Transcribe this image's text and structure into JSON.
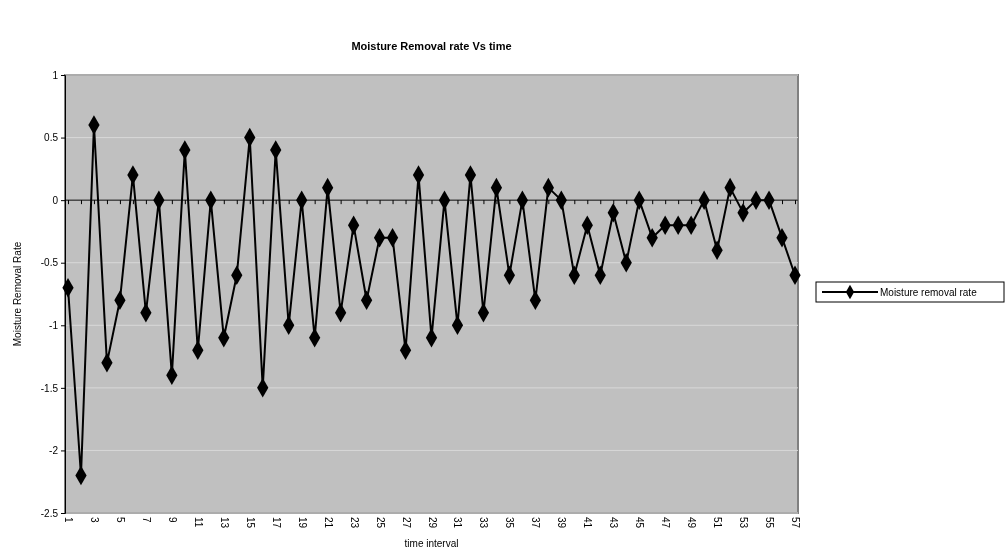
{
  "chart_data": {
    "type": "line",
    "title": "Moisture Removal rate Vs time",
    "xlabel": "time interval",
    "ylabel": "Moisture Removal Rate",
    "categories": [
      "1",
      null,
      "3",
      null,
      "5",
      null,
      "7",
      null,
      "9",
      null,
      "11",
      null,
      "13",
      null,
      "15",
      null,
      "17",
      null,
      "19",
      null,
      "21",
      null,
      "23",
      null,
      "25",
      null,
      "27",
      null,
      "29",
      null,
      "31",
      null,
      "33",
      null,
      "35",
      null,
      "37",
      null,
      "39",
      null,
      "41",
      null,
      "43",
      null,
      "45",
      null,
      "47",
      null,
      "49",
      null,
      "51",
      null,
      "53",
      null,
      "55",
      null,
      "57"
    ],
    "series": [
      {
        "name": "Moisture removal rate",
        "color": "#000000",
        "values": [
          -0.7,
          -2.2,
          0.6,
          -1.3,
          -0.8,
          0.2,
          -0.9,
          0,
          -1.4,
          0.4,
          -1.2,
          0,
          -1.1,
          -0.6,
          0.5,
          -1.5,
          0.4,
          -1.0,
          0,
          -1.1,
          0.1,
          -0.9,
          -0.2,
          -0.8,
          -0.3,
          -0.3,
          -1.2,
          0.2,
          -1.1,
          0,
          -1.0,
          0.2,
          -0.9,
          0.1,
          -0.6,
          0,
          -0.8,
          0.1,
          0,
          -0.6,
          -0.2,
          -0.6,
          -0.1,
          -0.5,
          0,
          -0.3,
          -0.2,
          -0.2,
          -0.2,
          0,
          -0.4,
          0.1,
          -0.1,
          0,
          0,
          -0.3,
          -0.6
        ]
      }
    ],
    "ylim": [
      -2.5,
      1
    ],
    "yticks": [
      -2.5,
      -2,
      -1.5,
      -1,
      -0.5,
      0,
      0.5,
      1
    ],
    "grid": "y",
    "legend": "right",
    "marker": "diamond",
    "line_style": "solid"
  }
}
